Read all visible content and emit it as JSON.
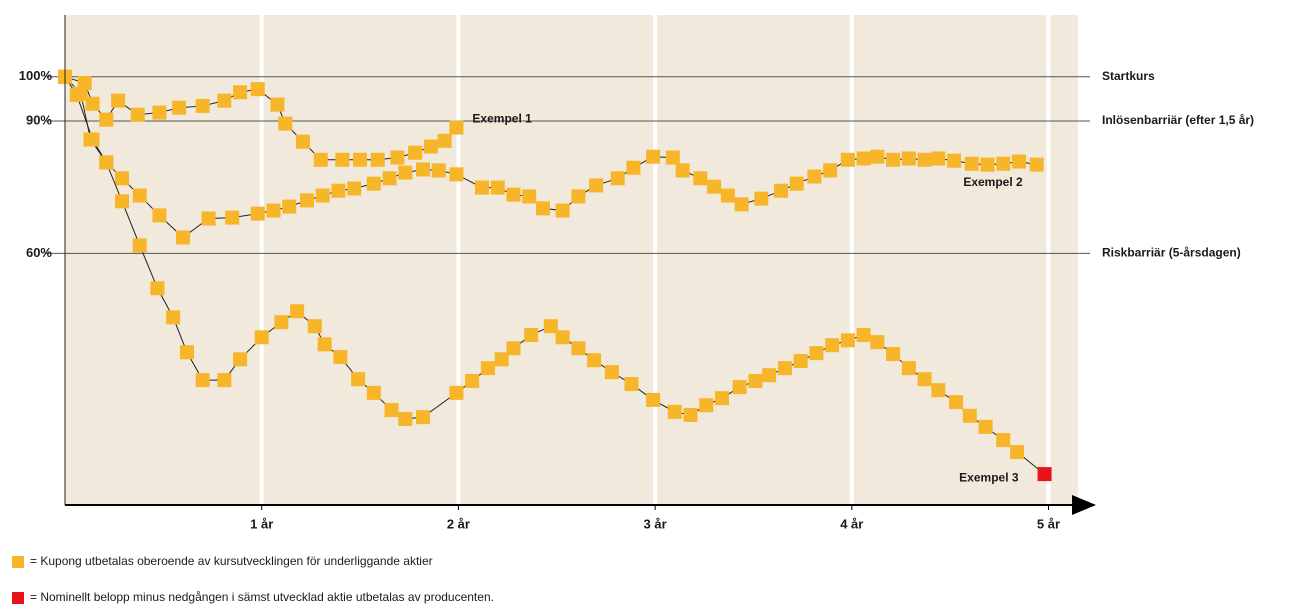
{
  "chart_data": {
    "type": "line",
    "xlim": [
      0,
      5.15
    ],
    "ylim": [
      3,
      114
    ],
    "xticks": [
      {
        "value": 1,
        "label": "1 år"
      },
      {
        "value": 2,
        "label": "2 år"
      },
      {
        "value": 3,
        "label": "3 år"
      },
      {
        "value": 4,
        "label": "4 år"
      },
      {
        "value": 5,
        "label": "5 år"
      }
    ],
    "yticks": [
      {
        "value": 60,
        "label": "60%"
      },
      {
        "value": 90,
        "label": "90%"
      },
      {
        "value": 100,
        "label": "100%"
      }
    ],
    "reference_lines": [
      {
        "value": 100,
        "label": "Startkurs"
      },
      {
        "value": 90,
        "label": "Inlösenbarriär (efter 1,5 år)"
      },
      {
        "value": 60,
        "label": "Riskbarriär (5-årsdagen)"
      }
    ],
    "grid": true,
    "series": [
      {
        "name": "Exempel 1",
        "color": "#f7b529",
        "x": [
          0,
          0.1,
          0.14,
          0.21,
          0.27,
          0.37,
          0.48,
          0.58,
          0.7,
          0.81,
          0.89,
          0.98,
          1.08,
          1.12,
          1.21,
          1.3,
          1.41,
          1.5,
          1.59,
          1.69,
          1.78,
          1.86,
          1.93,
          1.99
        ],
        "values": [
          100,
          98.6,
          93.9,
          90.3,
          94.6,
          91.4,
          91.9,
          93.0,
          93.4,
          94.6,
          96.5,
          97.2,
          93.7,
          89.4,
          85.3,
          81.2,
          81.2,
          81.2,
          81.2,
          81.7,
          82.8,
          84.2,
          85.5,
          88.5
        ]
      },
      {
        "name": "Exempel 2",
        "color": "#f7b529",
        "x": [
          0,
          0.08,
          0.13,
          0.21,
          0.29,
          0.38,
          0.48,
          0.6,
          0.73,
          0.85,
          0.98,
          1.06,
          1.14,
          1.23,
          1.31,
          1.39,
          1.47,
          1.57,
          1.65,
          1.73,
          1.82,
          1.9,
          1.99,
          2.12,
          2.2,
          2.28,
          2.36,
          2.43,
          2.53,
          2.61,
          2.7,
          2.81,
          2.89,
          2.99,
          3.09,
          3.14,
          3.23,
          3.3,
          3.37,
          3.44,
          3.54,
          3.64,
          3.72,
          3.81,
          3.89,
          3.98,
          4.06,
          4.13,
          4.21,
          4.29,
          4.37,
          4.44,
          4.52,
          4.61,
          4.69,
          4.77,
          4.85,
          4.94
        ],
        "values": [
          100,
          96.2,
          85.8,
          80.6,
          77.0,
          73.1,
          68.6,
          63.6,
          67.9,
          68.1,
          69.0,
          69.7,
          70.6,
          72.0,
          73.1,
          74.2,
          74.7,
          75.8,
          77.0,
          78.3,
          79.0,
          78.8,
          77.9,
          74.9,
          74.9,
          73.3,
          72.9,
          70.2,
          69.7,
          72.9,
          75.4,
          77.0,
          79.4,
          81.9,
          81.7,
          78.8,
          77.0,
          75.1,
          73.1,
          71.1,
          72.4,
          74.2,
          75.8,
          77.4,
          78.8,
          81.2,
          81.5,
          81.9,
          81.2,
          81.5,
          81.2,
          81.5,
          81.0,
          80.3,
          80.1,
          80.3,
          80.8,
          80.1
        ]
      },
      {
        "name": "Exempel 3",
        "color": "#f7b529",
        "end_color": "#e8141b",
        "x": [
          0,
          0.06,
          0.14,
          0.21,
          0.29,
          0.38,
          0.47,
          0.55,
          0.62,
          0.7,
          0.81,
          0.89,
          1.0,
          1.1,
          1.18,
          1.27,
          1.32,
          1.4,
          1.49,
          1.57,
          1.66,
          1.73,
          1.82,
          1.99,
          2.07,
          2.15,
          2.22,
          2.28,
          2.37,
          2.47,
          2.53,
          2.61,
          2.69,
          2.78,
          2.88,
          2.99,
          3.1,
          3.18,
          3.26,
          3.34,
          3.43,
          3.51,
          3.58,
          3.66,
          3.74,
          3.82,
          3.9,
          3.98,
          4.06,
          4.13,
          4.21,
          4.29,
          4.37,
          4.44,
          4.53,
          4.6,
          4.68,
          4.77,
          4.84,
          4.98
        ],
        "values": [
          100,
          95.9,
          85.8,
          80.6,
          71.8,
          61.8,
          52.1,
          45.5,
          37.6,
          31.3,
          31.3,
          36.0,
          41.0,
          44.4,
          46.9,
          43.5,
          39.4,
          36.5,
          31.5,
          28.4,
          24.5,
          22.5,
          22.9,
          28.4,
          31.1,
          34.0,
          36.0,
          38.5,
          41.5,
          43.5,
          41.0,
          38.5,
          35.8,
          33.1,
          30.4,
          26.8,
          24.1,
          23.4,
          25.6,
          27.2,
          29.7,
          31.1,
          32.4,
          34.0,
          35.6,
          37.4,
          39.2,
          40.3,
          41.5,
          39.9,
          37.2,
          34.0,
          31.5,
          29.0,
          26.3,
          23.2,
          20.7,
          17.7,
          15.0,
          10.0
        ]
      }
    ],
    "legend": [
      {
        "color": "#f7b529",
        "label": "= Kupong utbetalas oberoende av kursutvecklingen för underliggande aktier"
      },
      {
        "color": "#e8141b",
        "label": "= Nominellt belopp minus nedgången i sämst utvecklad aktie utbetalas av producenten."
      }
    ]
  }
}
